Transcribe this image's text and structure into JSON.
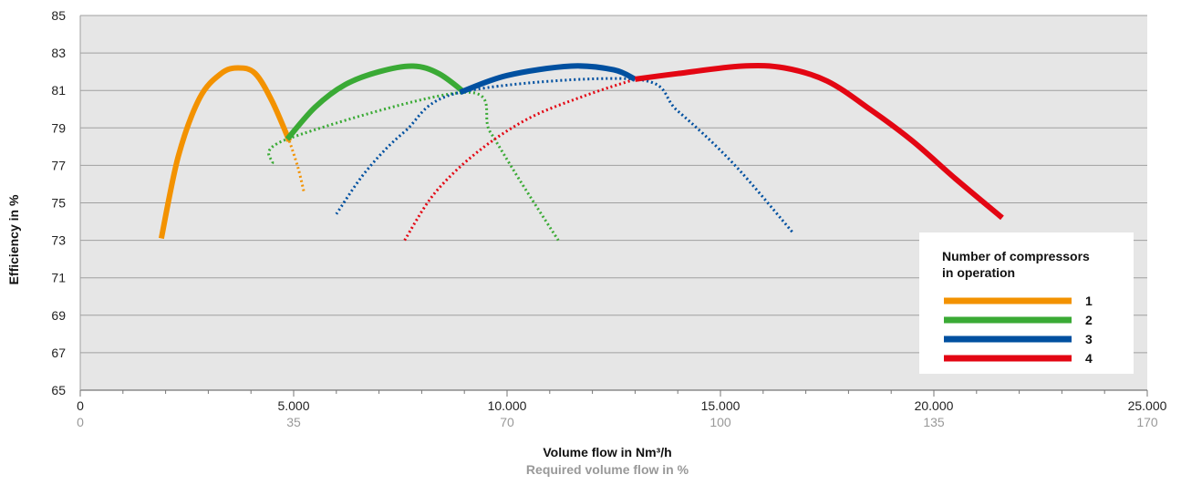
{
  "chart_data": {
    "type": "line",
    "ylabel": "Efficiency in %",
    "xlabel": "Volume flow in Nm³/h",
    "xlabel_secondary": "Required volume flow in %",
    "xlim": [
      0,
      25000
    ],
    "ylim": [
      65,
      85
    ],
    "x_ticks": [
      "0",
      "5.000",
      "10.000",
      "15.000",
      "20.000",
      "25.000"
    ],
    "x_ticks_secondary": [
      "0",
      "35",
      "70",
      "100",
      "135",
      "170"
    ],
    "y_ticks": [
      "65",
      "67",
      "69",
      "71",
      "73",
      "75",
      "77",
      "79",
      "81",
      "83",
      "85"
    ],
    "grid": true,
    "legend_title": "Number of compressors in operation",
    "legend_title_lines": [
      "Number of compressors",
      "in operation"
    ],
    "legend_position": "right",
    "series": [
      {
        "name": "1",
        "color": "#f39200",
        "solid": [
          [
            1900,
            73.1
          ],
          [
            2300,
            77.5
          ],
          [
            2800,
            80.6
          ],
          [
            3300,
            81.9
          ],
          [
            3700,
            82.2
          ],
          [
            4100,
            81.9
          ],
          [
            4500,
            80.4
          ],
          [
            4900,
            78.3
          ]
        ],
        "dotted": [
          [
            4900,
            78.3
          ],
          [
            5100,
            76.9
          ],
          [
            5250,
            75.5
          ]
        ]
      },
      {
        "name": "2",
        "color": "#3aaa35",
        "solid": [
          [
            4850,
            78.4
          ],
          [
            5500,
            80.1
          ],
          [
            6200,
            81.3
          ],
          [
            7000,
            82.0
          ],
          [
            7800,
            82.3
          ],
          [
            8400,
            81.9
          ],
          [
            9000,
            80.9
          ]
        ],
        "dotted": [
          [
            4500,
            77.1
          ],
          [
            4850,
            78.4
          ],
          [
            9000,
            80.9
          ],
          [
            9600,
            78.8
          ],
          [
            10300,
            76.2
          ],
          [
            11200,
            73.0
          ]
        ]
      },
      {
        "name": "3",
        "color": "#0050a0",
        "solid": [
          [
            8900,
            80.9
          ],
          [
            10000,
            81.8
          ],
          [
            11500,
            82.3
          ],
          [
            12500,
            82.1
          ],
          [
            13000,
            81.6
          ]
        ],
        "dotted": [
          [
            6000,
            74.4
          ],
          [
            6700,
            76.7
          ],
          [
            7600,
            78.8
          ],
          [
            8900,
            80.9
          ],
          [
            13000,
            81.6
          ],
          [
            14000,
            79.9
          ],
          [
            15300,
            77.1
          ],
          [
            16700,
            73.4
          ]
        ]
      },
      {
        "name": "4",
        "color": "#e30613",
        "solid": [
          [
            13000,
            81.6
          ],
          [
            14000,
            81.9
          ],
          [
            15500,
            82.3
          ],
          [
            16500,
            82.2
          ],
          [
            17500,
            81.5
          ],
          [
            18500,
            80.0
          ],
          [
            19500,
            78.3
          ],
          [
            20500,
            76.3
          ],
          [
            21600,
            74.2
          ]
        ],
        "dotted": [
          [
            7600,
            73.0
          ],
          [
            8300,
            75.5
          ],
          [
            9300,
            77.7
          ],
          [
            10500,
            79.5
          ],
          [
            11800,
            80.7
          ],
          [
            13000,
            81.6
          ]
        ]
      }
    ]
  }
}
